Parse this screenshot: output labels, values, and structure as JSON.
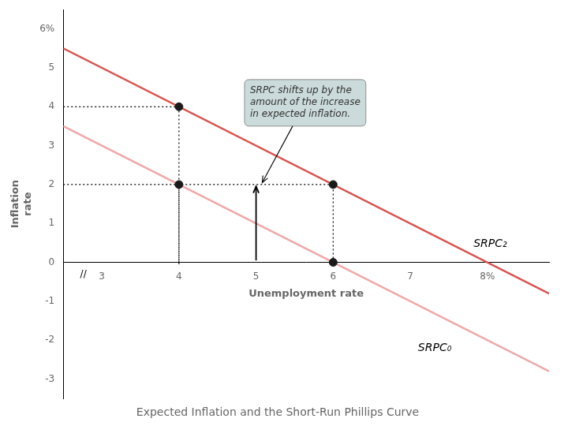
{
  "chart_data": {
    "type": "line",
    "title": "Expected Inflation and the Short-Run Phillips Curve",
    "xlabel": "Unemployment rate",
    "ylabel": "Inflation\nrate",
    "xlim": [
      2.5,
      8.8
    ],
    "ylim": [
      -3.5,
      6.5
    ],
    "xticks": [
      3,
      4,
      5,
      6,
      7,
      {
        "value": 8,
        "label": "8%"
      }
    ],
    "yticks": [
      -3,
      -2,
      -1,
      0,
      1,
      2,
      3,
      4,
      5,
      {
        "value": 6,
        "label": "6%"
      }
    ],
    "grid": false,
    "series": [
      {
        "color": "#f0a8a8",
        "x": [
          2.5,
          8.8
        ],
        "values": [
          3.5,
          -2.8
        ]
      },
      {
        "color": "#d9534f",
        "x": [
          2.5,
          8.8
        ],
        "values": [
          5.5,
          -0.8
        ]
      },
      {
        "color": "#000000",
        "line_style": "dotted",
        "x": [
          2.5,
          4
        ],
        "values": [
          4,
          4
        ]
      },
      {
        "color": "#000000",
        "line_style": "dotted",
        "x": [
          4,
          4
        ],
        "values": [
          0,
          4
        ]
      },
      {
        "color": "#000000",
        "line_style": "dotted",
        "x": [
          2.5,
          6
        ],
        "values": [
          2,
          2
        ]
      },
      {
        "color": "#000000",
        "line_style": "dotted",
        "x": [
          4,
          4
        ],
        "values": [
          -0.05,
          2
        ]
      },
      {
        "color": "#000000",
        "line_style": "dotted",
        "x": [
          6,
          6
        ],
        "values": [
          0,
          2
        ]
      },
      {
        "type": "scatter",
        "color": "#1a1a1a",
        "x": [
          4,
          4,
          6,
          6
        ],
        "values": [
          4,
          2,
          2,
          0
        ]
      }
    ],
    "arrows": [
      {
        "from": [
          5,
          0.05
        ],
        "to": [
          5,
          1.95
        ]
      }
    ],
    "annotations": [
      {
        "text": "SRPC₂",
        "x": 7.82,
        "y": 0.48
      },
      {
        "text": "SRPC₀",
        "x": 7.1,
        "y": -2.2
      },
      {
        "text": "SRPC shifts up by the\namount of the increase\nin expected inflation.",
        "x": 4.85,
        "y": 4.1,
        "arrow_to": [
          5.08,
          2.05
        ],
        "boxed": true
      },
      {
        "text": "//",
        "x": 2.76,
        "y": -0.18
      }
    ]
  }
}
